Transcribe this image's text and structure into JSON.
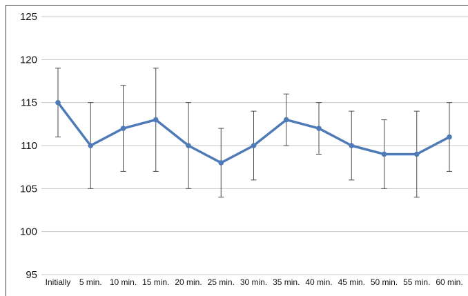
{
  "chart_data": {
    "type": "line",
    "title": "",
    "xlabel": "",
    "ylabel": "",
    "ylim": [
      95,
      125
    ],
    "yticks": [
      95,
      100,
      105,
      110,
      115,
      120,
      125
    ],
    "grid": true,
    "categories": [
      "Initially",
      "5 min.",
      "10 min.",
      "15 min.",
      "20 min.",
      "25 min.",
      "30 min.",
      "35 min.",
      "40 min.",
      "45 min.",
      "50 min.",
      "55 min.",
      "60 min."
    ],
    "series": [
      {
        "color": "#4f7ab8",
        "values": [
          115,
          110,
          112,
          113,
          110,
          108,
          110,
          113,
          112,
          110,
          109,
          109,
          111
        ],
        "error_low": [
          111,
          105,
          107,
          107,
          105,
          104,
          106,
          110,
          109,
          106,
          105,
          104,
          107
        ],
        "error_high": [
          119,
          115,
          117,
          119,
          115,
          112,
          114,
          116,
          115,
          114,
          113,
          114,
          115
        ]
      }
    ]
  }
}
